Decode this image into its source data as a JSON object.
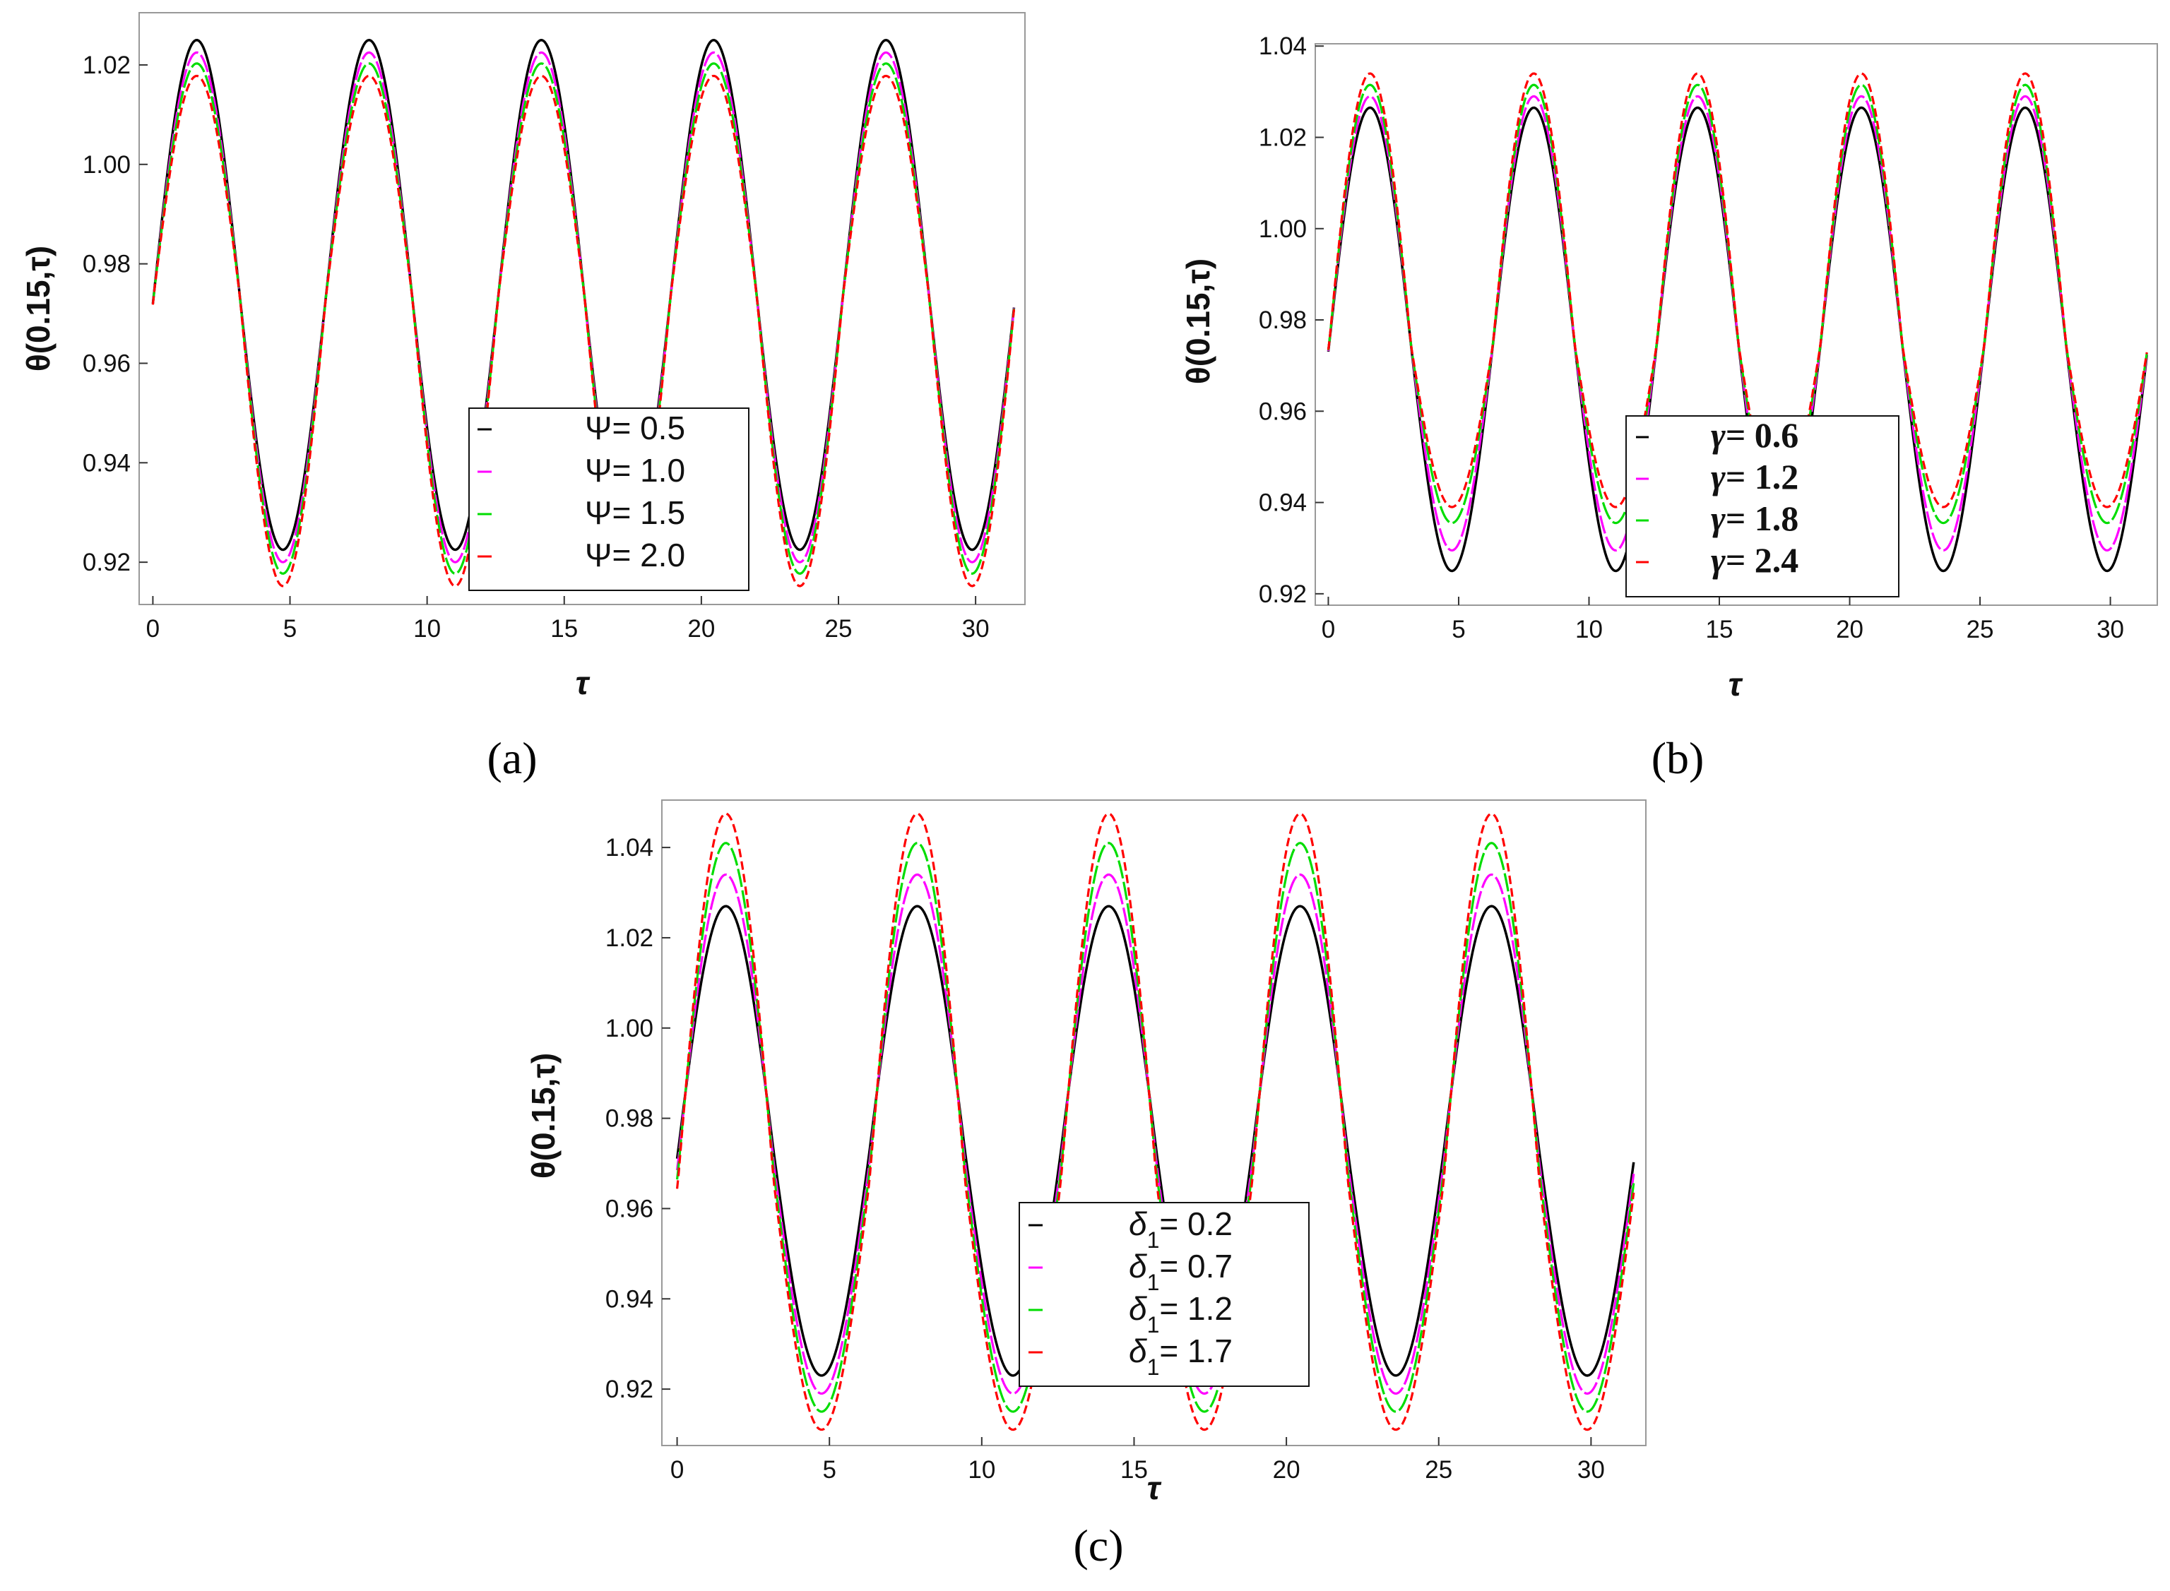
{
  "chart_data": [
    {
      "id": "a",
      "type": "line",
      "caption": "(a)",
      "xlabel": "τ",
      "ylabel": "θ(0.15,τ)",
      "xlim": [
        -0.5,
        31.8
      ],
      "ylim": [
        0.9115,
        1.0305
      ],
      "xticks": [
        "0",
        "5",
        "10",
        "15",
        "20",
        "25",
        "30"
      ],
      "xtick_values": [
        0,
        5,
        10,
        15,
        20,
        25,
        30
      ],
      "yticks": [
        "0.92",
        "0.94",
        "0.96",
        "0.98",
        "1.00",
        "1.02"
      ],
      "ytick_values": [
        0.92,
        0.94,
        0.96,
        0.98,
        1.0,
        1.02
      ],
      "x_range": [
        0,
        31.4
      ],
      "phase": 1.6,
      "series": [
        {
          "name": "Ψ= 0.5",
          "symbol": "Ψ",
          "value": "0.5",
          "color": "#000000",
          "dash": "",
          "c0": 0.9735,
          "up": 0.0515,
          "down": 0.051
        },
        {
          "name": "Ψ= 1.0",
          "symbol": "Ψ",
          "value": "1.0",
          "color": "#ff00ff",
          "dash": "26 5",
          "c0": 0.9735,
          "up": 0.049,
          "down": 0.0535
        },
        {
          "name": "Ψ= 1.5",
          "symbol": "Ψ",
          "value": "1.5",
          "color": "#00dd00",
          "dash": "26 5",
          "c0": 0.9735,
          "up": 0.0468,
          "down": 0.0558
        },
        {
          "name": "Ψ= 2.0",
          "symbol": "Ψ",
          "value": "2.0",
          "color": "#ff0000",
          "dash": "12 6",
          "c0": 0.9735,
          "up": 0.0443,
          "down": 0.0583
        }
      ]
    },
    {
      "id": "b",
      "type": "line",
      "caption": "(b)",
      "xlabel": "τ",
      "ylabel": "θ(0.15,τ)",
      "xlim": [
        -0.5,
        31.8
      ],
      "ylim": [
        0.9175,
        1.0405
      ],
      "xticks": [
        "0",
        "5",
        "10",
        "15",
        "20",
        "25",
        "30"
      ],
      "xtick_values": [
        0,
        5,
        10,
        15,
        20,
        25,
        30
      ],
      "yticks": [
        "0.92",
        "0.94",
        "0.96",
        "0.98",
        "1.00",
        "1.02",
        "1.04"
      ],
      "ytick_values": [
        0.92,
        0.94,
        0.96,
        0.98,
        1.0,
        1.02,
        1.04
      ],
      "x_range": [
        0,
        31.4
      ],
      "phase": 1.6,
      "series": [
        {
          "name": "γ= 0.6",
          "symbol": "γ",
          "value": "0.6",
          "color": "#000000",
          "dash": "",
          "c0": 0.9745,
          "up": 0.052,
          "down": 0.0495
        },
        {
          "name": "γ= 1.2",
          "symbol": "γ",
          "value": "1.2",
          "color": "#ff00ff",
          "dash": "26 5",
          "c0": 0.9745,
          "up": 0.0545,
          "down": 0.045
        },
        {
          "name": "γ= 1.8",
          "symbol": "γ",
          "value": "1.8",
          "color": "#00dd00",
          "dash": "26 5",
          "c0": 0.9745,
          "up": 0.057,
          "down": 0.039
        },
        {
          "name": "γ= 2.4",
          "symbol": "γ",
          "value": "2.4",
          "color": "#ff0000",
          "dash": "12 6",
          "c0": 0.9745,
          "up": 0.0595,
          "down": 0.0355
        }
      ]
    },
    {
      "id": "c",
      "type": "line",
      "caption": "(c)",
      "xlabel": "τ",
      "ylabel": "θ(0.15,τ)",
      "xlim": [
        -0.5,
        31.8
      ],
      "ylim": [
        0.9075,
        1.0505
      ],
      "xticks": [
        "0",
        "5",
        "10",
        "15",
        "20",
        "25",
        "30"
      ],
      "xtick_values": [
        0,
        5,
        10,
        15,
        20,
        25,
        30
      ],
      "yticks": [
        "0.92",
        "0.94",
        "0.96",
        "0.98",
        "1.00",
        "1.02",
        "1.04"
      ],
      "ytick_values": [
        0.92,
        0.94,
        0.96,
        0.98,
        1.0,
        1.02,
        1.04
      ],
      "x_range": [
        0,
        31.4
      ],
      "phase": 1.6,
      "series": [
        {
          "name": "δ1= 0.2",
          "symbol": "δ",
          "subscript": "1",
          "value": "0.2",
          "color": "#000000",
          "dash": "",
          "c0": 0.9725,
          "up": 0.0545,
          "down": 0.0495
        },
        {
          "name": "δ1= 0.7",
          "symbol": "δ",
          "subscript": "1",
          "value": "0.7",
          "color": "#ff00ff",
          "dash": "26 5",
          "c0": 0.97,
          "up": 0.064,
          "down": 0.051
        },
        {
          "name": "δ1= 1.2",
          "symbol": "δ",
          "subscript": "1",
          "value": "1.2",
          "color": "#00dd00",
          "dash": "26 5",
          "c0": 0.968,
          "up": 0.073,
          "down": 0.053
        },
        {
          "name": "δ1= 1.7",
          "symbol": "δ",
          "subscript": "1",
          "value": "1.7",
          "color": "#ff0000",
          "dash": "12 6",
          "c0": 0.966,
          "up": 0.0815,
          "down": 0.055
        }
      ]
    }
  ]
}
